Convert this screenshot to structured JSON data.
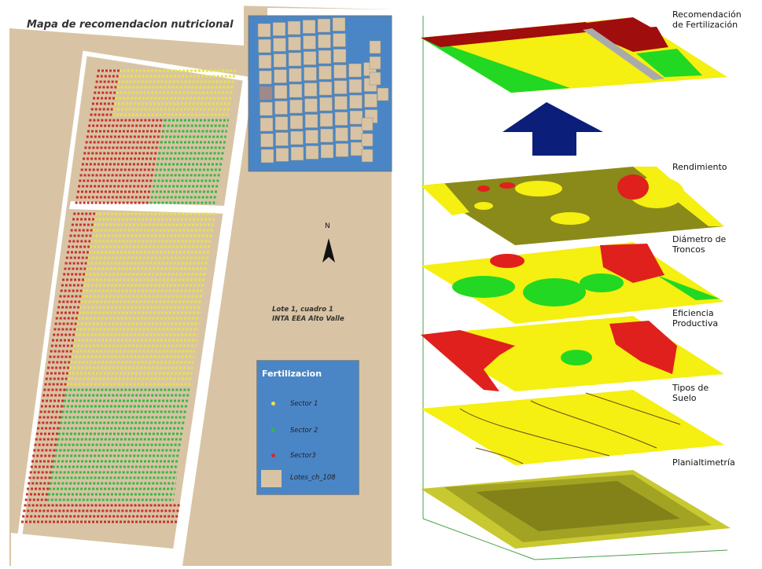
{
  "left_map": {
    "title": "Mapa de recomendacion nutricional",
    "caption_line1": "Lote 1, cuadro 1",
    "caption_line2": "INTA EEA Alto Valle",
    "north_label": "N",
    "legend": {
      "title": "Fertilizacion",
      "items": [
        {
          "label": "Sector 1",
          "color": "#e8e34a"
        },
        {
          "label": "Sector 2",
          "color": "#35b846"
        },
        {
          "label": "Sector3",
          "color": "#c9302c"
        },
        {
          "label": "Lotes_ch_108",
          "color": "#d8c4a4"
        }
      ]
    },
    "colors": {
      "background": "#d8c4a4",
      "water": "#4a86c6",
      "sector1": "#e8e34a",
      "sector2": "#35b846",
      "sector3": "#c9302c",
      "highlighted_lot": "#9e8a8a"
    }
  },
  "layers": [
    {
      "label_line1": "Recomendación",
      "label_line2": "de Fertilización"
    },
    {
      "label_line1": "Rendimiento",
      "label_line2": ""
    },
    {
      "label_line1": "Diámetro de",
      "label_line2": "Troncos"
    },
    {
      "label_line1": "Eficiencia",
      "label_line2": "Productiva"
    },
    {
      "label_line1": "Tipos de",
      "label_line2": "Suelo"
    },
    {
      "label_line1": "Planialtimetría",
      "label_line2": ""
    }
  ],
  "layer_colors": {
    "red": "#e0201c",
    "dark_red": "#a00d0d",
    "green": "#22d822",
    "yellow": "#f5ef12",
    "olive": "#8a8a1a",
    "arrow": "#0b1f7a",
    "grey": "#aaaaaa"
  }
}
